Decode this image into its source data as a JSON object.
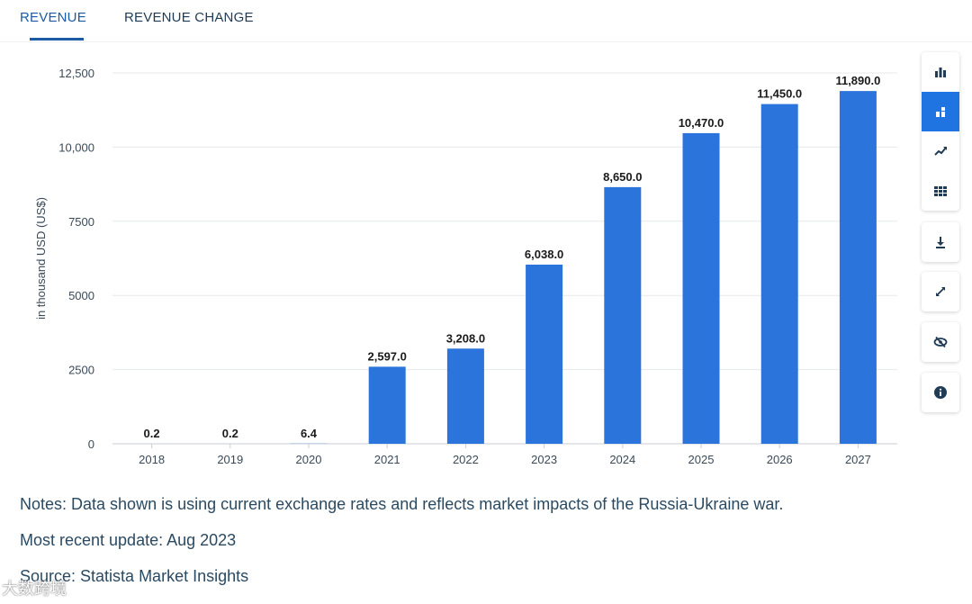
{
  "tabs": [
    {
      "label": "REVENUE",
      "active": true
    },
    {
      "label": "REVENUE CHANGE",
      "active": false
    }
  ],
  "toolbar": {
    "group1": [
      "bar-chart-icon",
      "stacked-bar-icon",
      "trend-line-icon",
      "table-icon"
    ],
    "active": "stacked-bar-icon",
    "download": "download-icon",
    "fullscreen": "expand-icon",
    "hide": "eye-off-icon",
    "info": "info-icon"
  },
  "chart_data": {
    "type": "bar",
    "categories": [
      "2018",
      "2019",
      "2020",
      "2021",
      "2022",
      "2023",
      "2024",
      "2025",
      "2026",
      "2027"
    ],
    "values": [
      0.2,
      0.2,
      6.4,
      2597.0,
      3208.0,
      6038.0,
      8650.0,
      10470.0,
      11450.0,
      11890.0
    ],
    "data_labels": [
      "0.2",
      "0.2",
      "6.4",
      "2,597.0",
      "3,208.0",
      "6,038.0",
      "8,650.0",
      "10,470.0",
      "11,450.0",
      "11,890.0"
    ],
    "ylabel": "in thousand USD (US$)",
    "ylim": [
      0,
      12500
    ],
    "yticks": [
      0,
      2500,
      5000,
      7500,
      10000,
      12500
    ],
    "ytick_labels": [
      "0",
      "2500",
      "5000",
      "7500",
      "10,000",
      "12,500"
    ],
    "grid": true,
    "bar_color": "#2a74db"
  },
  "notes": {
    "note": "Notes: Data shown is using current exchange rates and reflects market impacts of the Russia-Ukraine war.",
    "update": "Most recent update: Aug 2023",
    "source": "Source: Statista Market Insights"
  },
  "watermark": "大数跨境"
}
